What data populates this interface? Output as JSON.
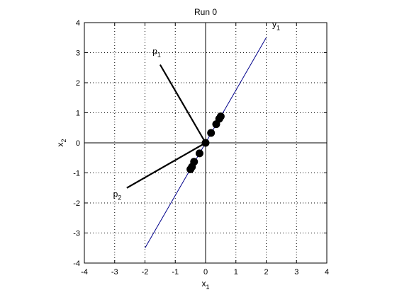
{
  "chart_data": {
    "type": "scatter",
    "title": "Run 0",
    "xlabel": {
      "base": "x",
      "sub": "1"
    },
    "ylabel": {
      "base": "x",
      "sub": "2"
    },
    "xlim": [
      -4,
      4
    ],
    "ylim": [
      -4,
      4
    ],
    "xticks": [
      -4,
      -3,
      -2,
      -1,
      0,
      1,
      2,
      3,
      4
    ],
    "yticks": [
      -4,
      -3,
      -2,
      -1,
      0,
      1,
      2,
      3,
      4
    ],
    "grid": true,
    "points": [
      {
        "x": -0.5,
        "y": -0.88
      },
      {
        "x": -0.45,
        "y": -0.8
      },
      {
        "x": -0.38,
        "y": -0.63
      },
      {
        "x": -0.2,
        "y": -0.35
      },
      {
        "x": 0.0,
        "y": 0.0
      },
      {
        "x": 0.18,
        "y": 0.33
      },
      {
        "x": 0.35,
        "y": 0.62
      },
      {
        "x": 0.45,
        "y": 0.8
      },
      {
        "x": 0.5,
        "y": 0.88
      }
    ],
    "line_y1": {
      "label": {
        "base": "y",
        "sub": "1"
      },
      "from": [
        -2.0,
        -3.5
      ],
      "to": [
        2.0,
        3.5
      ],
      "label_at": [
        2.2,
        3.85
      ],
      "color": "#00008b"
    },
    "vectors": [
      {
        "label": {
          "base": "p",
          "sub": "1"
        },
        "from": [
          0,
          0
        ],
        "to": [
          -1.5,
          2.6
        ],
        "label_at": [
          -1.75,
          2.95
        ]
      },
      {
        "label": {
          "base": "p",
          "sub": "2"
        },
        "from": [
          0,
          0
        ],
        "to": [
          -2.6,
          -1.5
        ],
        "label_at": [
          -3.05,
          -1.8
        ]
      }
    ]
  }
}
